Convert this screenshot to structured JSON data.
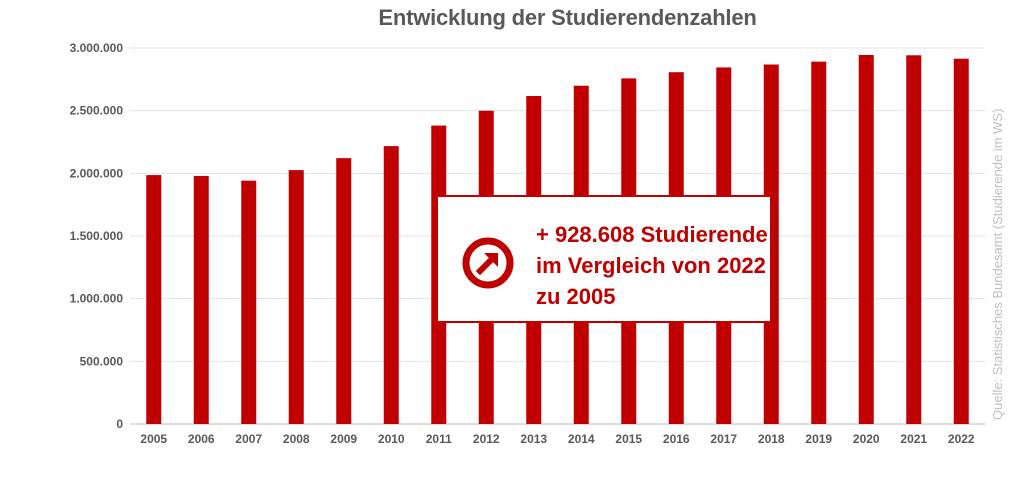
{
  "chart_data": {
    "type": "bar",
    "title": "Entwicklung der Studierendenzahlen",
    "categories": [
      "2005",
      "2006",
      "2007",
      "2008",
      "2009",
      "2010",
      "2011",
      "2012",
      "2013",
      "2014",
      "2015",
      "2016",
      "2017",
      "2018",
      "2019",
      "2020",
      "2021",
      "2022"
    ],
    "values": [
      1986106,
      1979043,
      1941405,
      2025742,
      2121190,
      2217294,
      2380974,
      2499409,
      2616881,
      2698910,
      2757799,
      2807010,
      2844978,
      2868222,
      2891049,
      2944145,
      2941915,
      2914714
    ],
    "ylim": [
      0,
      3000000
    ],
    "y_ticks": [
      0,
      500000,
      1000000,
      1500000,
      2000000,
      2500000,
      3000000
    ],
    "y_tick_labels": [
      "0",
      "500.000",
      "1.000.000",
      "1.500.000",
      "2.000.000",
      "2.500.000",
      "3.000.000"
    ],
    "xlabel": "",
    "ylabel": "",
    "grid": true,
    "bar_color": "#c00000"
  },
  "source_note": "Quelle: Statistisches Bundesamt (Studierende im WS)",
  "callout": {
    "line1": "+ 928.608 Studierende",
    "line2": "im Vergleich von 2022",
    "line3": "zu 2005",
    "icon": "arrow-up-right-circle-icon",
    "color": "#c00000"
  }
}
